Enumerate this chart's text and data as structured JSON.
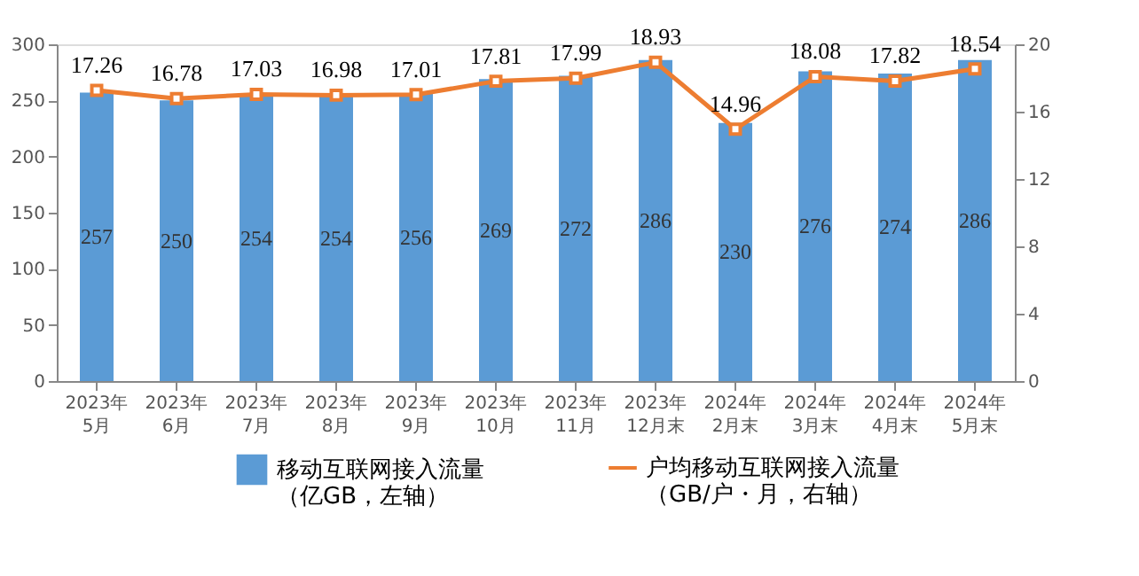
{
  "chart_data": {
    "type": "bar",
    "categories": [
      "2023年\n5月",
      "2023年\n6月",
      "2023年\n7月",
      "2023年\n8月",
      "2023年\n9月",
      "2023年\n10月",
      "2023年\n11月",
      "2023年\n12月末",
      "2024年\n2月末",
      "2024年\n3月末",
      "2024年\n4月末",
      "2024年\n5月末"
    ],
    "series": [
      {
        "name": "移动互联网接入流量（亿GB，左轴）",
        "color": "#5b9bd5",
        "values": [
          257,
          250,
          254,
          254,
          256,
          269,
          272,
          286,
          230,
          276,
          274,
          286
        ]
      },
      {
        "name": "户均移动互联网接入流量（GB/户・月，右轴）",
        "color": "#ed7d31",
        "type": "line",
        "axis": "y2",
        "marker": "square",
        "values": [
          17.26,
          16.78,
          17.03,
          16.98,
          17.01,
          17.81,
          17.99,
          18.93,
          14.96,
          18.08,
          17.82,
          18.54
        ]
      }
    ],
    "ylim": [
      0,
      300
    ],
    "yticks": [
      0,
      50,
      100,
      150,
      200,
      250,
      300
    ],
    "y2lim": [
      0,
      20
    ],
    "y2ticks": [
      0,
      4,
      8,
      12,
      16,
      20
    ],
    "data_labels": true,
    "grid": false,
    "legend": "bottom",
    "line_style": "solid"
  }
}
